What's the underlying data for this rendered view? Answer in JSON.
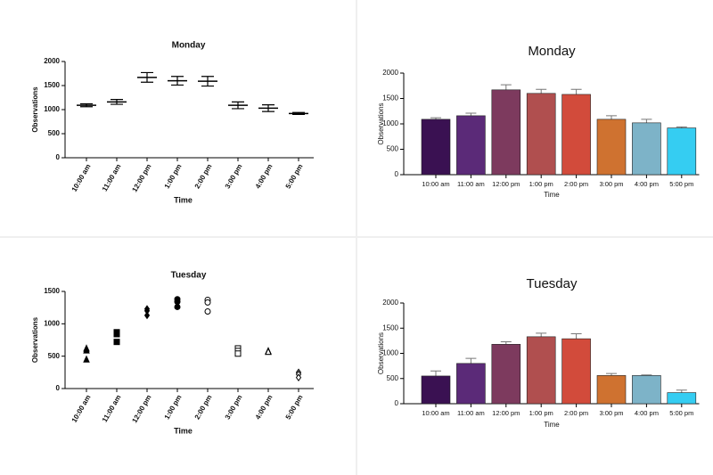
{
  "chart_data": [
    {
      "type": "errorbar",
      "title": "Monday",
      "x_label": "Time",
      "y_label": "Observations",
      "categories": [
        "10:00 am",
        "11:00 am",
        "12:00 pm",
        "1:00 pm",
        "2:00 pm",
        "3:00 pm",
        "4:00 pm",
        "5:00 pm"
      ],
      "values": [
        1090,
        1160,
        1670,
        1600,
        1590,
        1090,
        1030,
        920
      ],
      "errors": [
        30,
        50,
        100,
        90,
        100,
        70,
        70,
        20
      ],
      "ylim": [
        0,
        2000
      ],
      "yticks": [
        0,
        500,
        1000,
        1500,
        2000
      ],
      "color": "#000000"
    },
    {
      "type": "bar",
      "title": "Monday",
      "x_label": "Time",
      "y_label": "Observations",
      "categories": [
        "10:00 am",
        "11:00 am",
        "12:00 pm",
        "1:00 pm",
        "2:00 pm",
        "3:00 pm",
        "4:00 pm",
        "5:00 pm"
      ],
      "values": [
        1090,
        1160,
        1670,
        1600,
        1580,
        1090,
        1020,
        920
      ],
      "errors": [
        30,
        50,
        100,
        80,
        100,
        70,
        70,
        20
      ],
      "colors": [
        "#3a1152",
        "#5b2a78",
        "#7d3a5e",
        "#b04f4f",
        "#d24b3b",
        "#cf7230",
        "#7db3c8",
        "#35cdf2"
      ],
      "ylim": [
        0,
        2000
      ],
      "yticks": [
        0,
        500,
        1000,
        1500,
        2000
      ]
    },
    {
      "type": "dot",
      "title": "Tuesday",
      "x_label": "Time",
      "y_label": "Observations",
      "categories": [
        "10:00 am",
        "11:00 am",
        "12:00 pm",
        "1:00 pm",
        "2:00 pm",
        "3:00 pm",
        "4:00 pm",
        "5:00 pm"
      ],
      "values": [
        [
          620,
          590,
          450
        ],
        [
          870,
          840,
          720
        ],
        [
          1230,
          1200,
          1130
        ],
        [
          1380,
          1340,
          1260
        ],
        [
          1370,
          1330,
          1190
        ],
        [
          620,
          580,
          540
        ],
        [
          580,
          570,
          570
        ],
        [
          250,
          220,
          170
        ]
      ],
      "markers": [
        "triangle",
        "square",
        "diamond",
        "circle",
        "circle",
        "square",
        "triangle",
        "diamond"
      ],
      "filled": [
        true,
        true,
        true,
        true,
        false,
        false,
        false,
        false
      ],
      "ylim": [
        0,
        1500
      ],
      "yticks": [
        0,
        500,
        1000,
        1500
      ],
      "color": "#000000"
    },
    {
      "type": "bar",
      "title": "Tuesday",
      "x_label": "Time",
      "y_label": "Observations",
      "categories": [
        "10:00 am",
        "11:00 am",
        "12:00 pm",
        "1:00 pm",
        "2:00 pm",
        "3:00 pm",
        "4:00 pm",
        "5:00 pm"
      ],
      "values": [
        550,
        800,
        1180,
        1330,
        1290,
        560,
        560,
        220
      ],
      "errors": [
        100,
        100,
        50,
        70,
        100,
        40,
        10,
        50
      ],
      "colors": [
        "#3a1152",
        "#5b2a78",
        "#7d3a5e",
        "#b04f4f",
        "#d24b3b",
        "#cf7230",
        "#7db3c8",
        "#35cdf2"
      ],
      "ylim": [
        0,
        2000
      ],
      "yticks": [
        0,
        500,
        1000,
        1500,
        2000
      ]
    }
  ]
}
